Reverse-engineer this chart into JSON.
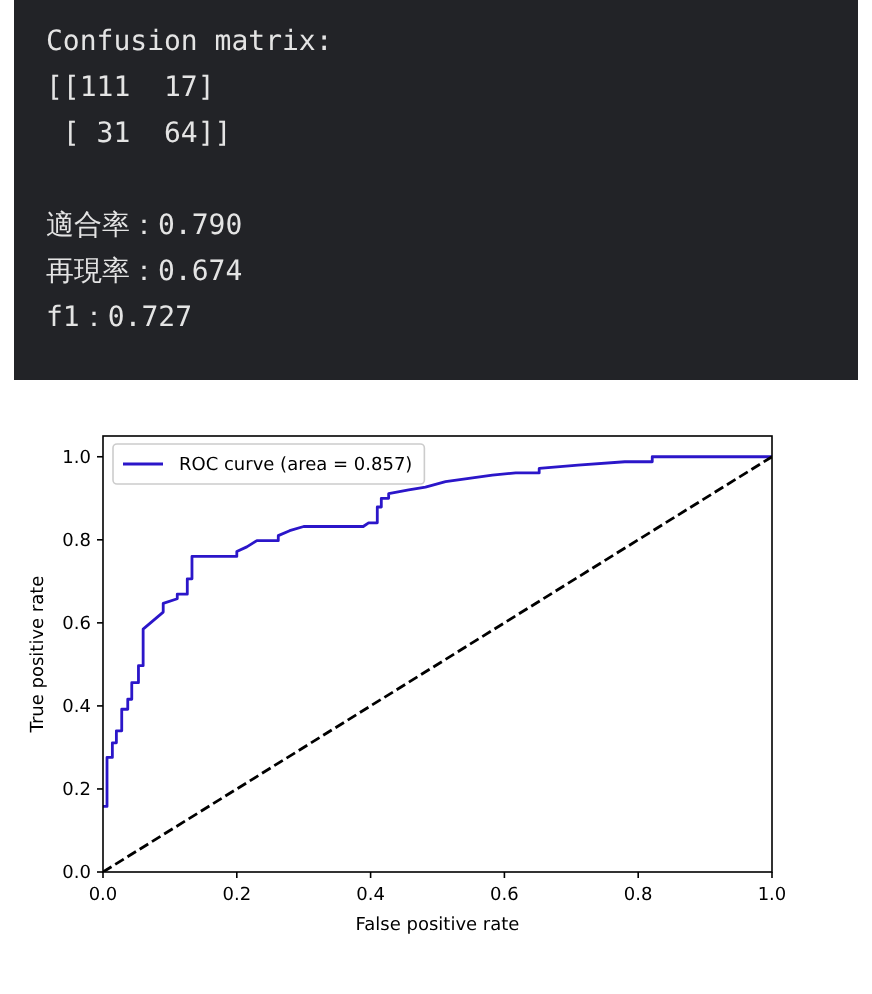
{
  "chart_data": {
    "type": "line",
    "annotations": [
      "Confusion matrix:\n[[111  17]\n [ 31  64]]",
      "適合率：0.790\n再現率：0.674\nf1：0.727"
    ],
    "xlabel": "False positive rate",
    "ylabel": "True positive rate",
    "xlim": [
      0,
      1
    ],
    "ylim": [
      0,
      1.05
    ],
    "xticks": [
      {
        "value": 0,
        "label": "0.0"
      },
      {
        "value": 0.2,
        "label": "0.2"
      },
      {
        "value": 0.4,
        "label": "0.4"
      },
      {
        "value": 0.6,
        "label": "0.6"
      },
      {
        "value": 0.8,
        "label": "0.8"
      },
      {
        "value": 1,
        "label": "1.0"
      }
    ],
    "yticks": [
      {
        "value": 0,
        "label": "0.0"
      },
      {
        "value": 0.2,
        "label": "0.2"
      },
      {
        "value": 0.4,
        "label": "0.4"
      },
      {
        "value": 0.6,
        "label": "0.6"
      },
      {
        "value": 0.8,
        "label": "0.8"
      },
      {
        "value": 1,
        "label": "1.0"
      }
    ],
    "legend": "top left",
    "series": [
      {
        "name": "ROC curve (area = 0.857)",
        "color": "#2b16c9",
        "line_style": "solid",
        "x": [
          0,
          0.006,
          0.006,
          0.014,
          0.014,
          0.02,
          0.02,
          0.028,
          0.028,
          0.037,
          0.037,
          0.043,
          0.043,
          0.053,
          0.053,
          0.06,
          0.06,
          0.09,
          0.09,
          0.111,
          0.111,
          0.126,
          0.126,
          0.133,
          0.133,
          0.2,
          0.2,
          0.215,
          0.23,
          0.262,
          0.262,
          0.279,
          0.3,
          0.389,
          0.397,
          0.41,
          0.41,
          0.416,
          0.416,
          0.427,
          0.427,
          0.457,
          0.482,
          0.512,
          0.547,
          0.582,
          0.617,
          0.652,
          0.652,
          0.71,
          0.78,
          0.821,
          0.821,
          1.0
        ],
        "values": [
          0.158,
          0.158,
          0.276,
          0.276,
          0.311,
          0.311,
          0.34,
          0.34,
          0.392,
          0.392,
          0.416,
          0.416,
          0.456,
          0.456,
          0.497,
          0.497,
          0.585,
          0.626,
          0.647,
          0.658,
          0.669,
          0.669,
          0.706,
          0.706,
          0.76,
          0.76,
          0.772,
          0.783,
          0.798,
          0.798,
          0.81,
          0.822,
          0.832,
          0.832,
          0.841,
          0.841,
          0.879,
          0.879,
          0.9,
          0.9,
          0.911,
          0.92,
          0.927,
          0.94,
          0.948,
          0.956,
          0.961,
          0.961,
          0.972,
          0.98,
          0.988,
          0.988,
          1.0,
          1.0
        ]
      },
      {
        "color": "#000000",
        "line_style": "dashed",
        "x": [
          0,
          1
        ],
        "values": [
          0,
          1
        ]
      }
    ]
  }
}
